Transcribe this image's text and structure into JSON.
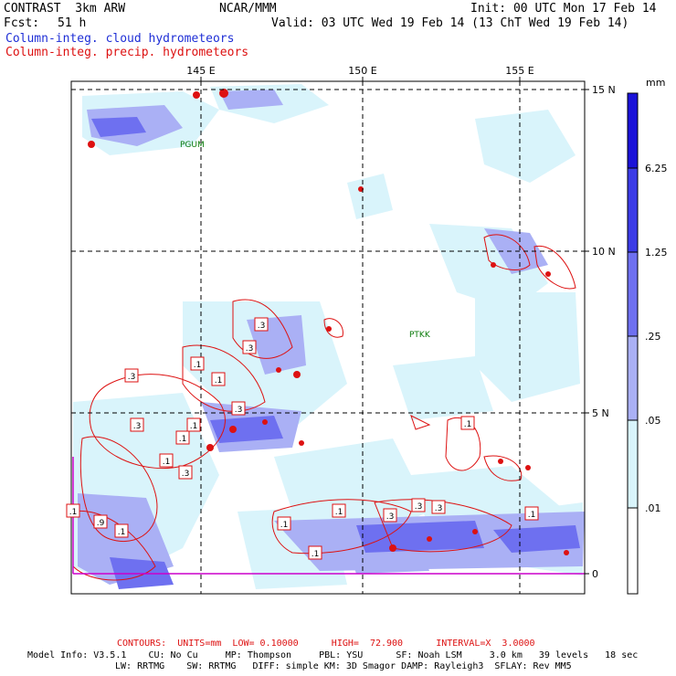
{
  "header": {
    "title_left": "CONTRAST  3km ARW",
    "center": "NCAR/MMM",
    "init": "Init: 00 UTC Mon 17 Feb 14",
    "fcst_label": "Fcst:",
    "fcst_value": "51 h",
    "valid": "Valid: 03 UTC Wed 19 Feb 14 (13 ChT Wed 19 Feb 14)",
    "field_cloud": "Column-integ. cloud hydrometeors",
    "field_precip": "Column-integ. precip. hydrometeors"
  },
  "map": {
    "lon_labels": [
      "145 E",
      "150 E",
      "155 E"
    ],
    "lat_labels": [
      "15 N",
      "10 N",
      "5 N",
      "0"
    ],
    "stations": [
      "PGUM",
      "PTKK"
    ],
    "contour_labels": [
      ".3",
      ".1",
      ".1",
      ".3",
      ".3",
      ".1",
      ".3",
      ".3",
      ".1",
      ".3",
      ".1",
      ".9",
      ".1",
      ".1",
      ".1",
      ".1",
      ".3",
      ".3",
      ".3",
      ".1",
      ".1",
      ".1"
    ]
  },
  "colorbar": {
    "unit": "mm",
    "ticks": [
      "6.25",
      "1.25",
      ".25",
      ".05",
      ".01"
    ],
    "colors": [
      "#1a12d8",
      "#3b3be6",
      "#6e70f0",
      "#aab0f5",
      "#d9f4fb",
      "#ffffff"
    ]
  },
  "footer": {
    "contours": "CONTOURS:  UNITS=mm  LOW= 0.10000      HIGH=  72.900      INTERVAL=X  3.0000",
    "line1": "Model Info: V3.5.1    CU: No Cu     MP: Thompson     PBL: YSU      SF: Noah LSM     3.0 km   39 levels   18 sec",
    "line2": "LW: RRTMG    SW: RRTMG   DIFF: simple KM: 3D Smagor DAMP: Rayleigh3  SFLAY: Rev MM5"
  }
}
